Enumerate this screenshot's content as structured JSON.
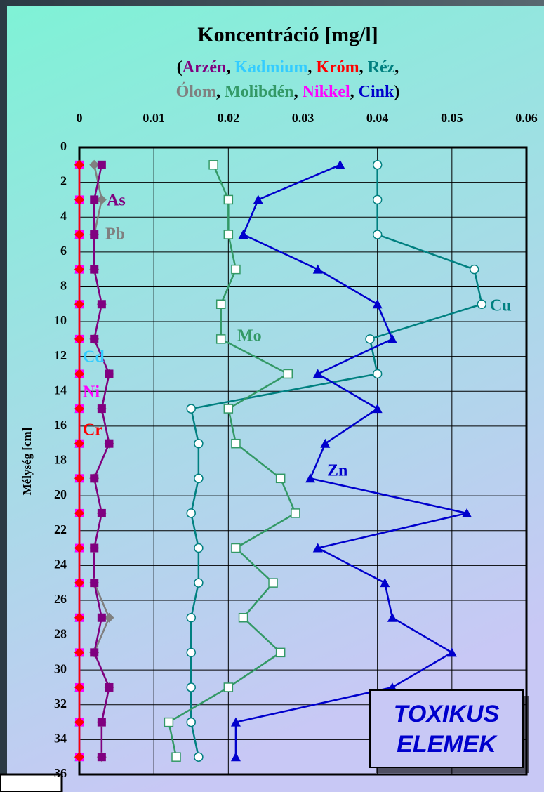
{
  "chart_data": {
    "type": "line",
    "title": "Koncentráció [mg/l]",
    "subtitle_lines": [
      [
        {
          "text": "(",
          "color": "#000000"
        },
        {
          "text": "Arzén",
          "color": "#800080"
        },
        {
          "text": ", ",
          "color": "#000000"
        },
        {
          "text": "Kadmium",
          "color": "#33ccff"
        },
        {
          "text": ", ",
          "color": "#000000"
        },
        {
          "text": "Króm",
          "color": "#ff0000"
        },
        {
          "text": ", ",
          "color": "#000000"
        },
        {
          "text": "Réz",
          "color": "#008080"
        },
        {
          "text": ",",
          "color": "#000000"
        }
      ],
      [
        {
          "text": "Ólom",
          "color": "#808080"
        },
        {
          "text": ", ",
          "color": "#000000"
        },
        {
          "text": "Molibdén",
          "color": "#339966"
        },
        {
          "text": ", ",
          "color": "#000000"
        },
        {
          "text": "Nikkel",
          "color": "#ff00ff"
        },
        {
          "text": ", ",
          "color": "#000000"
        },
        {
          "text": "Cink",
          "color": "#0000cc"
        },
        {
          "text": ")",
          "color": "#000000"
        }
      ]
    ],
    "y_label": "Mélység [cm]",
    "annotation": [
      "TOXIKUS",
      "ELEMEK"
    ],
    "xlim": [
      0,
      0.06
    ],
    "xticks": [
      0,
      0.01,
      0.02,
      0.03,
      0.04,
      0.05,
      0.06
    ],
    "ylim": [
      0,
      36
    ],
    "yticks": [
      0,
      2,
      4,
      6,
      8,
      10,
      12,
      14,
      16,
      18,
      20,
      22,
      24,
      26,
      28,
      30,
      32,
      34,
      36
    ],
    "y_inverted": true,
    "grid": true,
    "depths": [
      1,
      3,
      5,
      7,
      9,
      11,
      13,
      15,
      17,
      19,
      21,
      23,
      25,
      27,
      29,
      31,
      33,
      35
    ],
    "series": [
      {
        "name": "Cu",
        "color": "#008080",
        "marker": "open-circle",
        "values": [
          0.04,
          0.04,
          0.04,
          0.053,
          0.054,
          0.039,
          0.04,
          0.015,
          0.016,
          0.016,
          0.015,
          0.016,
          0.016,
          0.015,
          0.015,
          0.015,
          0.015,
          0.016
        ]
      },
      {
        "name": "Mo",
        "color": "#339966",
        "marker": "open-square",
        "values": [
          0.018,
          0.02,
          0.02,
          0.021,
          0.019,
          0.019,
          0.028,
          0.02,
          0.021,
          0.027,
          0.029,
          0.021,
          0.026,
          0.022,
          0.027,
          0.02,
          0.012,
          0.013
        ]
      },
      {
        "name": "Zn",
        "color": "#0000cc",
        "marker": "triangle",
        "values": [
          0.035,
          0.024,
          0.022,
          0.032,
          0.04,
          0.042,
          0.032,
          0.04,
          0.033,
          0.031,
          0.052,
          0.032,
          0.041,
          0.042,
          0.05,
          0.042,
          0.021,
          0.021
        ]
      },
      {
        "name": "Pb",
        "color": "#808080",
        "marker": "diamond",
        "values": [
          0.002,
          0.003,
          0.002,
          0.002,
          0.003,
          0.002,
          0.004,
          0.003,
          0.004,
          0.002,
          0.003,
          0.002,
          0.002,
          0.004,
          0.002,
          0.004,
          0.003,
          0.003
        ]
      },
      {
        "name": "As",
        "color": "#800080",
        "marker": "square",
        "values": [
          0.003,
          0.002,
          0.002,
          0.002,
          0.003,
          0.002,
          0.004,
          0.003,
          0.004,
          0.002,
          0.003,
          0.002,
          0.002,
          0.003,
          0.002,
          0.004,
          0.003,
          0.003
        ]
      },
      {
        "name": "Cd",
        "color": "#33ccff",
        "marker": "triangle",
        "values": [
          0,
          0,
          0,
          0,
          0,
          0,
          0,
          0,
          0,
          0,
          0,
          0,
          0,
          0,
          0,
          0,
          0,
          0
        ]
      },
      {
        "name": "Ni",
        "color": "#ff00ff",
        "marker": "square",
        "values": [
          0,
          0,
          0,
          0,
          0,
          0,
          0,
          0,
          0,
          0,
          0,
          0,
          0,
          0,
          0,
          0,
          0,
          0
        ]
      },
      {
        "name": "Cr",
        "color": "#ff0000",
        "marker": "diamond",
        "values": [
          0,
          0,
          0,
          0,
          0,
          0,
          0,
          0,
          0,
          0,
          0,
          0,
          0,
          0,
          0,
          0,
          0,
          0
        ]
      }
    ]
  }
}
